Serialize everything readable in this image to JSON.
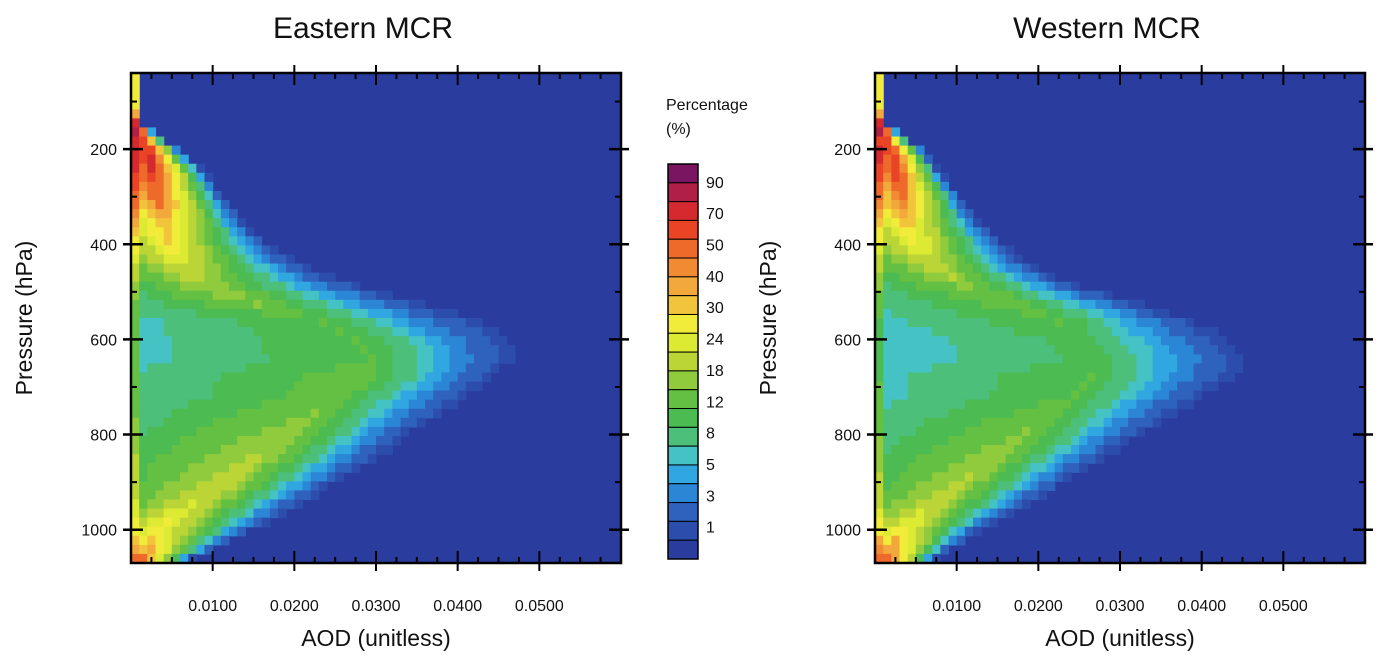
{
  "colors": {
    "background_cell": "#2a3d9e",
    "palette": [
      "#2a3d9e",
      "#2d4dad",
      "#2f62bc",
      "#2c86d6",
      "#31a7e2",
      "#45c2c4",
      "#4cbf7a",
      "#4bbb52",
      "#63c043",
      "#8fcb3c",
      "#bbd536",
      "#ddea34",
      "#f1ec3a",
      "#f2c43b",
      "#f3a83c",
      "#f08a33",
      "#ee6a2a",
      "#ea4427",
      "#d42a2f",
      "#b01f46",
      "#7a1561"
    ]
  },
  "chart_data": [
    {
      "type": "heatmap",
      "title": "Eastern MCR",
      "xlabel": "AOD  (unitless)",
      "ylabel": "Pressure (hPa)",
      "xlim": [
        0.0,
        0.06
      ],
      "ylim": [
        1070,
        40
      ],
      "x_ticks": [
        {
          "value": 0.01,
          "label": "0.0100"
        },
        {
          "value": 0.02,
          "label": "0.0200"
        },
        {
          "value": 0.03,
          "label": "0.0300"
        },
        {
          "value": 0.04,
          "label": "0.0400"
        },
        {
          "value": 0.05,
          "label": "0.0500"
        }
      ],
      "y_ticks": [
        {
          "value": 200,
          "label": "200"
        },
        {
          "value": 400,
          "label": "400"
        },
        {
          "value": 600,
          "label": "600"
        },
        {
          "value": 800,
          "label": "800"
        },
        {
          "value": 1000,
          "label": "1000"
        }
      ],
      "distribution": {
        "rows_pressure_hPa": [
          60,
          100,
          140,
          180,
          200,
          240,
          280,
          320,
          360,
          400,
          440,
          480,
          520,
          560,
          600,
          640,
          680,
          720,
          760,
          800,
          840,
          880,
          920,
          960,
          1000,
          1040,
          1060
        ],
        "envelope_aod_max": [
          0.0008,
          0.0008,
          0.001,
          0.004,
          0.006,
          0.009,
          0.011,
          0.013,
          0.015,
          0.018,
          0.022,
          0.029,
          0.038,
          0.046,
          0.05,
          0.05,
          0.047,
          0.044,
          0.04,
          0.036,
          0.033,
          0.029,
          0.025,
          0.021,
          0.016,
          0.011,
          0.008
        ],
        "core_aod": [
          0.0,
          0.0,
          0.0,
          0.0015,
          0.002,
          0.0025,
          0.003,
          0.0035,
          0.004,
          0.0045,
          0.006,
          0.008,
          0.014,
          0.022,
          0.027,
          0.029,
          0.028,
          0.025,
          0.022,
          0.019,
          0.016,
          0.013,
          0.01,
          0.006,
          0.003,
          0.002,
          0.0015
        ],
        "peak_percent": [
          95,
          90,
          85,
          40,
          45,
          42,
          36,
          30,
          24,
          20,
          16,
          12,
          10,
          8,
          8,
          8,
          9,
          9,
          10,
          11,
          12,
          13,
          14,
          16,
          20,
          26,
          30
        ]
      },
      "zlabel": "Percentage (%)"
    },
    {
      "type": "heatmap",
      "title": "Western MCR",
      "xlabel": "AOD  (unitless)",
      "ylabel": "Pressure (hPa)",
      "xlim": [
        0.0,
        0.06
      ],
      "ylim": [
        1070,
        40
      ],
      "x_ticks": [
        {
          "value": 0.01,
          "label": "0.0100"
        },
        {
          "value": 0.02,
          "label": "0.0200"
        },
        {
          "value": 0.03,
          "label": "0.0300"
        },
        {
          "value": 0.04,
          "label": "0.0400"
        },
        {
          "value": 0.05,
          "label": "0.0500"
        }
      ],
      "y_ticks": [
        {
          "value": 200,
          "label": "200"
        },
        {
          "value": 400,
          "label": "400"
        },
        {
          "value": 600,
          "label": "600"
        },
        {
          "value": 800,
          "label": "800"
        },
        {
          "value": 1000,
          "label": "1000"
        }
      ],
      "distribution": {
        "rows_pressure_hPa": [
          60,
          100,
          140,
          180,
          200,
          240,
          280,
          320,
          360,
          400,
          440,
          480,
          520,
          560,
          600,
          640,
          680,
          720,
          760,
          800,
          840,
          880,
          920,
          960,
          1000,
          1040,
          1060
        ],
        "envelope_aod_max": [
          0.0008,
          0.0008,
          0.001,
          0.004,
          0.006,
          0.008,
          0.01,
          0.012,
          0.014,
          0.017,
          0.02,
          0.026,
          0.034,
          0.042,
          0.047,
          0.049,
          0.047,
          0.043,
          0.039,
          0.035,
          0.031,
          0.027,
          0.023,
          0.019,
          0.014,
          0.01,
          0.008
        ],
        "core_aod": [
          0.0,
          0.0,
          0.0,
          0.0015,
          0.002,
          0.0025,
          0.003,
          0.0035,
          0.004,
          0.005,
          0.007,
          0.01,
          0.016,
          0.022,
          0.025,
          0.027,
          0.026,
          0.024,
          0.021,
          0.018,
          0.015,
          0.012,
          0.009,
          0.006,
          0.003,
          0.002,
          0.0015
        ],
        "peak_percent": [
          95,
          90,
          85,
          38,
          42,
          40,
          34,
          28,
          22,
          18,
          14,
          11,
          9,
          8,
          7,
          7,
          8,
          8,
          9,
          10,
          11,
          12,
          13,
          15,
          20,
          28,
          34
        ]
      },
      "zlabel": "Percentage (%)"
    }
  ],
  "colorbar": {
    "title_line1": "Percentage",
    "title_line2": "(%)",
    "labels": [
      "90",
      "70",
      "50",
      "40",
      "30",
      "24",
      "18",
      "12",
      "8",
      "5",
      "3",
      "1"
    ]
  }
}
